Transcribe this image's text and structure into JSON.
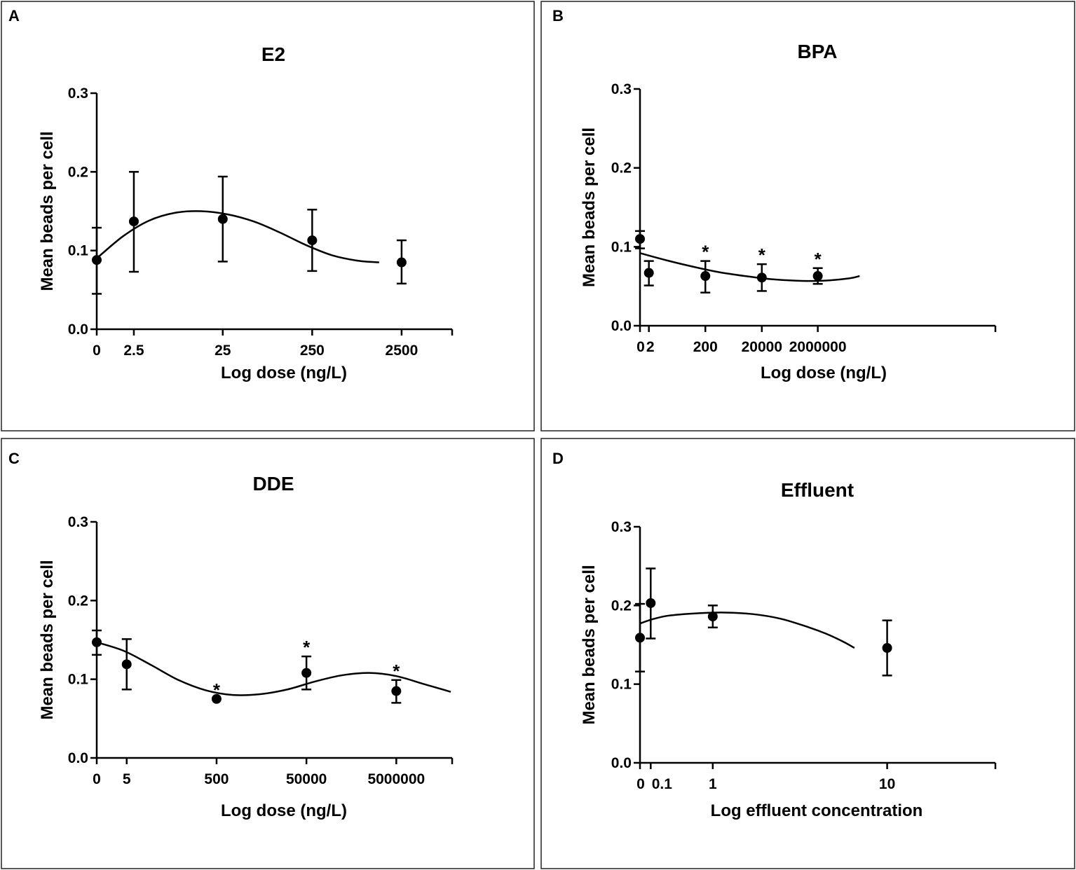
{
  "chart_data": [
    {
      "panel": "A",
      "type": "scatter",
      "title": "E2",
      "xlabel": "Log dose (ng/L)",
      "ylabel": "Mean beads per cell",
      "ylim": [
        0,
        0.3
      ],
      "yticks": [
        "0.0",
        "0.1",
        "0.2",
        "0.3"
      ],
      "xcategories": [
        "0",
        "2.5",
        "25",
        "250",
        "2500"
      ],
      "points": [
        {
          "x": "0",
          "y": 0.088,
          "err_lo": 0.045,
          "err_hi": 0.129,
          "star": false
        },
        {
          "x": "2.5",
          "y": 0.137,
          "err_lo": 0.073,
          "err_hi": 0.2,
          "star": false
        },
        {
          "x": "25",
          "y": 0.14,
          "err_lo": 0.086,
          "err_hi": 0.194,
          "star": false
        },
        {
          "x": "250",
          "y": 0.113,
          "err_lo": 0.074,
          "err_hi": 0.152,
          "star": false
        },
        {
          "x": "2500",
          "y": 0.085,
          "err_lo": 0.058,
          "err_hi": 0.113,
          "star": false
        }
      ],
      "fit": [
        [
          0,
          0.09
        ],
        [
          0.5,
          0.118
        ],
        [
          1.0,
          0.138
        ],
        [
          1.5,
          0.148
        ],
        [
          2.0,
          0.15
        ],
        [
          2.5,
          0.146
        ],
        [
          3.0,
          0.137
        ],
        [
          3.5,
          0.123
        ],
        [
          4.0,
          0.107
        ],
        [
          4.5,
          0.094
        ],
        [
          5.0,
          0.087
        ],
        [
          5.4,
          0.085
        ]
      ],
      "star_symbol": "*"
    },
    {
      "panel": "B",
      "type": "scatter",
      "title": "BPA",
      "xlabel": "Log dose (ng/L)",
      "ylabel": "Mean beads per cell",
      "ylim": [
        0,
        0.3
      ],
      "yticks": [
        "0.0",
        "0.1",
        "0.2",
        "0.3"
      ],
      "xcategories": [
        "0",
        "2",
        "200",
        "20000",
        "2000000"
      ],
      "points": [
        {
          "x": "0",
          "y": 0.11,
          "err_lo": 0.098,
          "err_hi": 0.12,
          "star": false
        },
        {
          "x": "2",
          "y": 0.067,
          "err_lo": 0.051,
          "err_hi": 0.082,
          "star": false
        },
        {
          "x": "200",
          "y": 0.063,
          "err_lo": 0.042,
          "err_hi": 0.082,
          "star": true
        },
        {
          "x": "20000",
          "y": 0.061,
          "err_lo": 0.044,
          "err_hi": 0.078,
          "star": true
        },
        {
          "x": "2000000",
          "y": 0.063,
          "err_lo": 0.053,
          "err_hi": 0.073,
          "star": true
        }
      ],
      "fit": [
        [
          0,
          0.092
        ],
        [
          0.5,
          0.083
        ],
        [
          1.0,
          0.075
        ],
        [
          1.5,
          0.068
        ],
        [
          2.0,
          0.063
        ],
        [
          2.5,
          0.059
        ],
        [
          3.0,
          0.057
        ],
        [
          3.5,
          0.057
        ],
        [
          4.0,
          0.06
        ],
        [
          4.2,
          0.063
        ]
      ],
      "star_symbol": "*"
    },
    {
      "panel": "C",
      "type": "scatter",
      "title": "DDE",
      "xlabel": "Log dose (ng/L)",
      "ylabel": "Mean beads per cell",
      "ylim": [
        0,
        0.3
      ],
      "yticks": [
        "0.0",
        "0.1",
        "0.2",
        "0.3"
      ],
      "xcategories": [
        "0",
        "5",
        "500",
        "50000",
        "5000000"
      ],
      "points": [
        {
          "x": "0",
          "y": 0.147,
          "err_lo": 0.131,
          "err_hi": 0.162,
          "star": false
        },
        {
          "x": "5",
          "y": 0.119,
          "err_lo": 0.087,
          "err_hi": 0.151,
          "star": false
        },
        {
          "x": "500",
          "y": 0.075,
          "err_lo": 0.075,
          "err_hi": 0.075,
          "star": true
        },
        {
          "x": "50000",
          "y": 0.108,
          "err_lo": 0.087,
          "err_hi": 0.129,
          "star": true
        },
        {
          "x": "5000000",
          "y": 0.085,
          "err_lo": 0.07,
          "err_hi": 0.099,
          "star": true
        }
      ],
      "fit": [
        [
          0,
          0.147
        ],
        [
          0.5,
          0.136
        ],
        [
          1.0,
          0.118
        ],
        [
          1.5,
          0.099
        ],
        [
          2.0,
          0.086
        ],
        [
          2.5,
          0.08
        ],
        [
          3.0,
          0.081
        ],
        [
          3.5,
          0.087
        ],
        [
          4.0,
          0.097
        ],
        [
          4.5,
          0.105
        ],
        [
          5.0,
          0.108
        ],
        [
          5.5,
          0.104
        ],
        [
          6.0,
          0.094
        ],
        [
          6.5,
          0.084
        ]
      ],
      "star_symbol": "*"
    },
    {
      "panel": "D",
      "type": "scatter",
      "title": "Effluent",
      "xlabel": "Log effluent concentration",
      "ylabel": "Mean beads per cell",
      "ylim": [
        0,
        0.3
      ],
      "yticks": [
        "0.0",
        "0.1",
        "0.2",
        "0.3"
      ],
      "xcategories": [
        "0",
        "0.1",
        "1",
        "10"
      ],
      "points": [
        {
          "x": "0",
          "y": 0.159,
          "err_lo": 0.116,
          "err_hi": 0.202,
          "star": false
        },
        {
          "x": "0.1",
          "y": 0.203,
          "err_lo": 0.158,
          "err_hi": 0.247,
          "star": false
        },
        {
          "x": "1",
          "y": 0.186,
          "err_lo": 0.172,
          "err_hi": 0.2,
          "star": false
        },
        {
          "x": "10",
          "y": 0.146,
          "err_lo": 0.111,
          "err_hi": 0.181,
          "star": false
        }
      ],
      "fit": [
        [
          0,
          0.177
        ],
        [
          0.2,
          0.182
        ],
        [
          0.5,
          0.187
        ],
        [
          1.0,
          0.19
        ],
        [
          1.5,
          0.191
        ],
        [
          2.0,
          0.189
        ],
        [
          2.5,
          0.183
        ],
        [
          3.0,
          0.172
        ],
        [
          3.3,
          0.164
        ],
        [
          3.6,
          0.154
        ],
        [
          3.8,
          0.146
        ]
      ],
      "star_symbol": "*"
    }
  ]
}
